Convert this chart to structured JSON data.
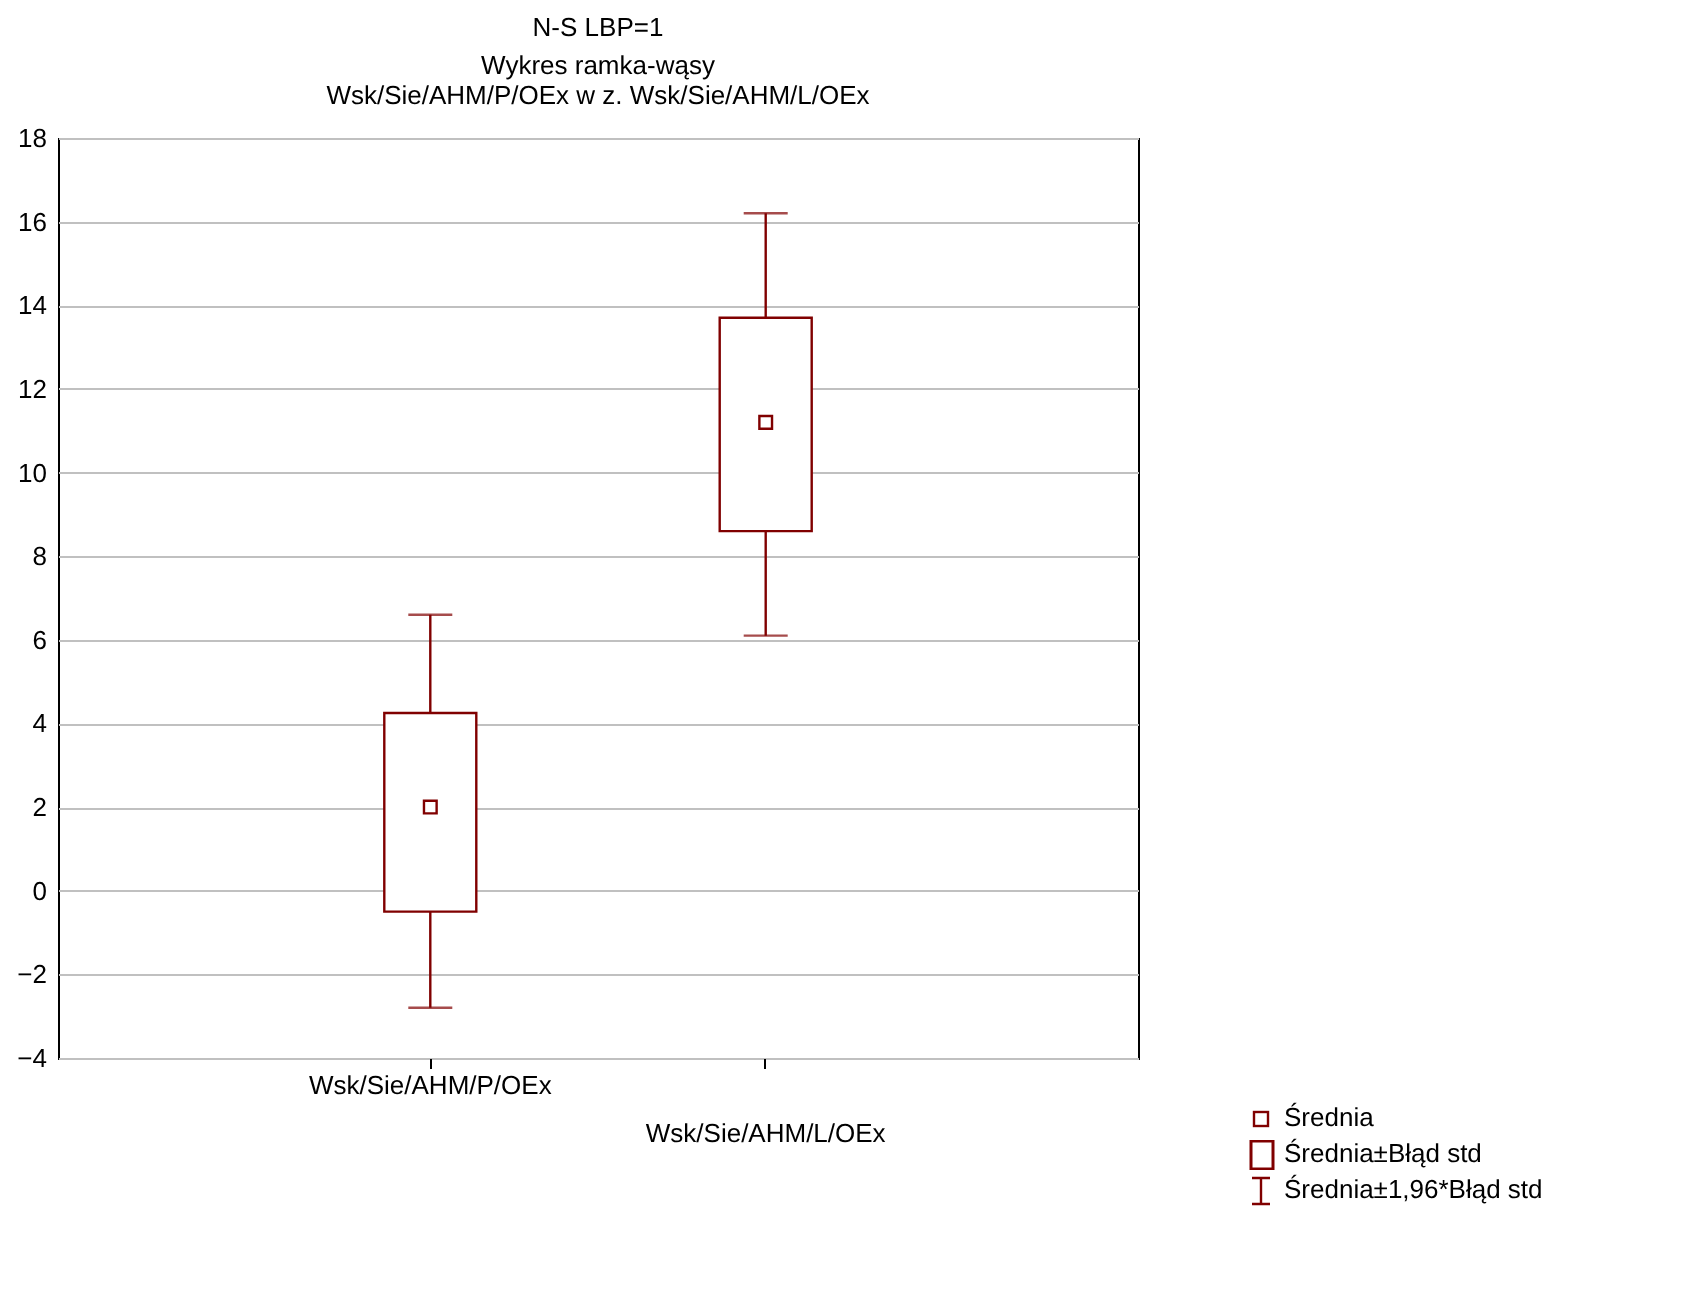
{
  "chart_data": {
    "type": "box",
    "title": "N-S LBP=1",
    "subtitle": "Wykres ramka-wąsy\nWsk/Sie/AHM/P/OEx w z. Wsk/Sie/AHM/L/OEx",
    "categories": [
      "Wsk/Sie/AHM/P/OEx",
      "Wsk/Sie/AHM/L/OEx"
    ],
    "boxes": [
      {
        "low": -2.8,
        "q1": -0.5,
        "median": 2.0,
        "q3": 4.25,
        "high": 6.6
      },
      {
        "low": 6.1,
        "q1": 8.6,
        "median": 11.2,
        "q3": 13.7,
        "high": 16.2
      }
    ],
    "color": "#800000",
    "ylim": [
      -4,
      18
    ],
    "yticks": [
      -4,
      -2,
      0,
      2,
      4,
      6,
      8,
      10,
      12,
      14,
      16,
      18
    ],
    "grid": "y",
    "marker": "square",
    "annotations": [
      "Średnia",
      "Średnia±Błąd std",
      "Średnia±1,96*Błąd std"
    ]
  }
}
